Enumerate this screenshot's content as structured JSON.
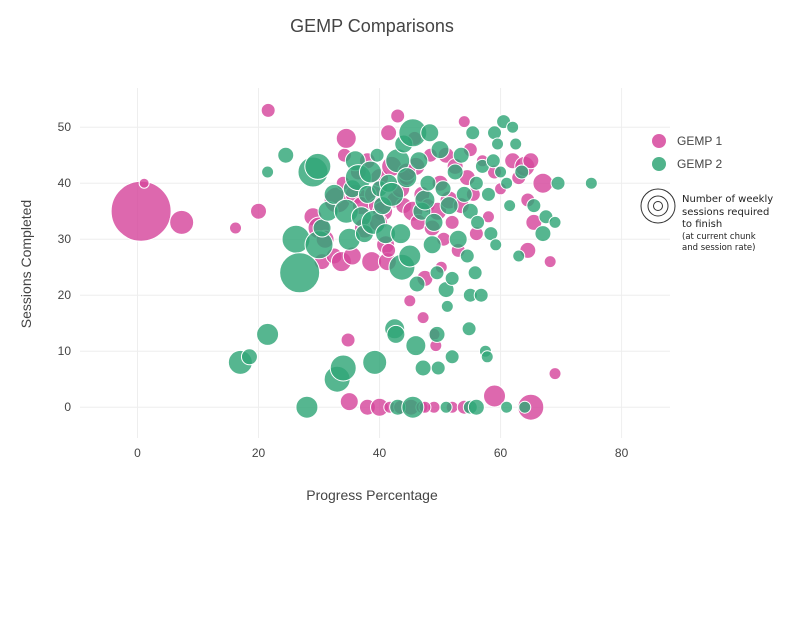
{
  "chart_data": {
    "type": "scatter",
    "title": "GEMP Comparisons",
    "xlabel": "Progress Percentage",
    "ylabel": "Sessions Completed",
    "xlim": [
      -9.5,
      88
    ],
    "ylim": [
      -5.5,
      57
    ],
    "xticks": [
      0,
      20,
      40,
      60,
      80
    ],
    "yticks": [
      0,
      10,
      20,
      30,
      40,
      50
    ],
    "grid": true,
    "legend_position": "right",
    "size_legend": {
      "main": "Number of weekly\nsessions required\nto finish",
      "sub": "(at current chunk\nand session rate)"
    },
    "series": [
      {
        "name": "GEMP 1",
        "color": "#d6479c",
        "points": [
          [
            0.6,
            35,
            30
          ],
          [
            1.1,
            40,
            5
          ],
          [
            7.3,
            33,
            12
          ],
          [
            16.2,
            32,
            6
          ],
          [
            20.0,
            35,
            8
          ],
          [
            21.6,
            53,
            7
          ],
          [
            29.0,
            34,
            9
          ],
          [
            30.0,
            32,
            11
          ],
          [
            30.5,
            26,
            8
          ],
          [
            31.0,
            30,
            9
          ],
          [
            32.5,
            27,
            8
          ],
          [
            33.0,
            37,
            13
          ],
          [
            33.7,
            26,
            10
          ],
          [
            34.0,
            40,
            7
          ],
          [
            34.2,
            45,
            7
          ],
          [
            34.5,
            48,
            10
          ],
          [
            35.5,
            27,
            9
          ],
          [
            36.0,
            38,
            10
          ],
          [
            36.5,
            42,
            8
          ],
          [
            37.0,
            36,
            9
          ],
          [
            37.5,
            32,
            10
          ],
          [
            38.0,
            44,
            8
          ],
          [
            38.7,
            26,
            10
          ],
          [
            39.0,
            38,
            9
          ],
          [
            39.5,
            36,
            8
          ],
          [
            40.0,
            41,
            9
          ],
          [
            40.5,
            35,
            10
          ],
          [
            41.0,
            29,
            9
          ],
          [
            41.3,
            26,
            9
          ],
          [
            41.5,
            49,
            8
          ],
          [
            42.0,
            43,
            10
          ],
          [
            42.5,
            37,
            8
          ],
          [
            43.0,
            52,
            7
          ],
          [
            43.5,
            39,
            9
          ],
          [
            44.0,
            36,
            8
          ],
          [
            44.5,
            41,
            8
          ],
          [
            45.0,
            19,
            6
          ],
          [
            45.5,
            35,
            10
          ],
          [
            45.8,
            48,
            7
          ],
          [
            46.0,
            43,
            9
          ],
          [
            46.4,
            33,
            8
          ],
          [
            47.0,
            38,
            8
          ],
          [
            47.2,
            16,
            6
          ],
          [
            47.5,
            23,
            8
          ],
          [
            48.0,
            36,
            7
          ],
          [
            48.4,
            45,
            7
          ],
          [
            48.7,
            32,
            8
          ],
          [
            49.0,
            13,
            6
          ],
          [
            49.3,
            11,
            6
          ],
          [
            49.6,
            35,
            9
          ],
          [
            50.0,
            40,
            8
          ],
          [
            50.2,
            25,
            6
          ],
          [
            50.6,
            30,
            7
          ],
          [
            51.0,
            45,
            8
          ],
          [
            51.5,
            37,
            9
          ],
          [
            52.0,
            33,
            7
          ],
          [
            52.5,
            43,
            8
          ],
          [
            53.0,
            28,
            7
          ],
          [
            53.5,
            36,
            8
          ],
          [
            54.0,
            51,
            6
          ],
          [
            54.5,
            41,
            8
          ],
          [
            55.0,
            46,
            7
          ],
          [
            55.5,
            38,
            7
          ],
          [
            56.0,
            31,
            7
          ],
          [
            57.0,
            44,
            6
          ],
          [
            58.0,
            34,
            6
          ],
          [
            59.0,
            42,
            7
          ],
          [
            60.0,
            39,
            6
          ],
          [
            62.0,
            44,
            8
          ],
          [
            63.0,
            41,
            7
          ],
          [
            64.0,
            43,
            10
          ],
          [
            64.5,
            37,
            7
          ],
          [
            65.0,
            44,
            8
          ],
          [
            65.5,
            33,
            8
          ],
          [
            67.0,
            40,
            10
          ],
          [
            64.5,
            28,
            8
          ],
          [
            68.2,
            26,
            6
          ],
          [
            69.0,
            6,
            6
          ],
          [
            34.8,
            12,
            7
          ],
          [
            35.0,
            1,
            9
          ],
          [
            38.0,
            0,
            8
          ],
          [
            40.0,
            0,
            9
          ],
          [
            41.7,
            0,
            6
          ],
          [
            43.5,
            0,
            7
          ],
          [
            45.2,
            0,
            8
          ],
          [
            47.0,
            0,
            6
          ],
          [
            49.0,
            0,
            6
          ],
          [
            52.0,
            0,
            6
          ],
          [
            54.0,
            0,
            7
          ],
          [
            59.0,
            2,
            11
          ],
          [
            65.0,
            0,
            13
          ],
          [
            47.5,
            0,
            6
          ],
          [
            41.5,
            28,
            7
          ],
          [
            44.5,
            42,
            9
          ],
          [
            39.8,
            33,
            9
          ]
        ]
      },
      {
        "name": "GEMP 2",
        "color": "#31a677",
        "points": [
          [
            17.0,
            8,
            12
          ],
          [
            18.5,
            9,
            8
          ],
          [
            21.5,
            42,
            6
          ],
          [
            21.5,
            13,
            11
          ],
          [
            24.5,
            45,
            8
          ],
          [
            26.2,
            30,
            14
          ],
          [
            26.8,
            24,
            20
          ],
          [
            28.0,
            0,
            11
          ],
          [
            29.0,
            42,
            15
          ],
          [
            29.8,
            43,
            13
          ],
          [
            30.0,
            29,
            14
          ],
          [
            30.5,
            32,
            9
          ],
          [
            31.5,
            35,
            10
          ],
          [
            32.5,
            38,
            10
          ],
          [
            33.0,
            5,
            13
          ],
          [
            34.0,
            7,
            13
          ],
          [
            34.5,
            35,
            12
          ],
          [
            35.0,
            30,
            11
          ],
          [
            35.5,
            39,
            9
          ],
          [
            36.0,
            44,
            10
          ],
          [
            36.5,
            41,
            13
          ],
          [
            37.0,
            34,
            10
          ],
          [
            37.5,
            31,
            9
          ],
          [
            38.0,
            38,
            9
          ],
          [
            38.5,
            42,
            11
          ],
          [
            39.0,
            33,
            12
          ],
          [
            39.2,
            8,
            12
          ],
          [
            39.6,
            45,
            7
          ],
          [
            40.0,
            39,
            8
          ],
          [
            40.5,
            36,
            9
          ],
          [
            41.0,
            31,
            10
          ],
          [
            41.5,
            40,
            9
          ],
          [
            42.0,
            38,
            12
          ],
          [
            42.5,
            14,
            10
          ],
          [
            42.7,
            13,
            9
          ],
          [
            43.0,
            44,
            12
          ],
          [
            43.5,
            31,
            10
          ],
          [
            43.7,
            25,
            13
          ],
          [
            44.0,
            47,
            9
          ],
          [
            44.5,
            41,
            10
          ],
          [
            45.0,
            27,
            11
          ],
          [
            45.5,
            49,
            14
          ],
          [
            46.0,
            11,
            10
          ],
          [
            46.2,
            22,
            8
          ],
          [
            46.5,
            44,
            9
          ],
          [
            47.0,
            35,
            9
          ],
          [
            47.2,
            7,
            8
          ],
          [
            47.5,
            37,
            10
          ],
          [
            48.0,
            40,
            8
          ],
          [
            48.3,
            49,
            9
          ],
          [
            48.7,
            29,
            9
          ],
          [
            49.0,
            33,
            9
          ],
          [
            49.5,
            13,
            8
          ],
          [
            49.7,
            7,
            7
          ],
          [
            50.0,
            46,
            9
          ],
          [
            50.5,
            39,
            8
          ],
          [
            51.0,
            21,
            8
          ],
          [
            51.2,
            18,
            6
          ],
          [
            51.5,
            36,
            9
          ],
          [
            52.0,
            9,
            7
          ],
          [
            52.0,
            23,
            7
          ],
          [
            52.5,
            42,
            8
          ],
          [
            53.0,
            30,
            9
          ],
          [
            53.5,
            45,
            8
          ],
          [
            54.0,
            38,
            8
          ],
          [
            54.5,
            27,
            7
          ],
          [
            54.8,
            14,
            7
          ],
          [
            55.0,
            20,
            7
          ],
          [
            55.0,
            35,
            8
          ],
          [
            55.4,
            49,
            7
          ],
          [
            55.8,
            24,
            7
          ],
          [
            56.0,
            40,
            7
          ],
          [
            56.2,
            33,
            7
          ],
          [
            56.8,
            20,
            7
          ],
          [
            57.0,
            43,
            7
          ],
          [
            57.5,
            10,
            6
          ],
          [
            57.8,
            9,
            6
          ],
          [
            58.0,
            38,
            7
          ],
          [
            58.4,
            31,
            7
          ],
          [
            58.8,
            44,
            7
          ],
          [
            59.0,
            49,
            7
          ],
          [
            59.2,
            29,
            6
          ],
          [
            59.5,
            47,
            6
          ],
          [
            60.0,
            42,
            6
          ],
          [
            60.5,
            51,
            7
          ],
          [
            61.0,
            40,
            6
          ],
          [
            61.5,
            36,
            6
          ],
          [
            62.0,
            50,
            6
          ],
          [
            62.5,
            47,
            6
          ],
          [
            63.0,
            27,
            6
          ],
          [
            63.5,
            42,
            7
          ],
          [
            65.5,
            36,
            7
          ],
          [
            67.0,
            31,
            8
          ],
          [
            67.5,
            34,
            7
          ],
          [
            69.0,
            33,
            6
          ],
          [
            69.5,
            40,
            7
          ],
          [
            75.0,
            40,
            6
          ],
          [
            43.0,
            0,
            8
          ],
          [
            45.5,
            0,
            11
          ],
          [
            51.0,
            0,
            6
          ],
          [
            55.0,
            0,
            7
          ],
          [
            56.0,
            0,
            8
          ],
          [
            61.0,
            0,
            6
          ],
          [
            64.0,
            0,
            6
          ],
          [
            49.5,
            24,
            7
          ]
        ]
      }
    ]
  }
}
